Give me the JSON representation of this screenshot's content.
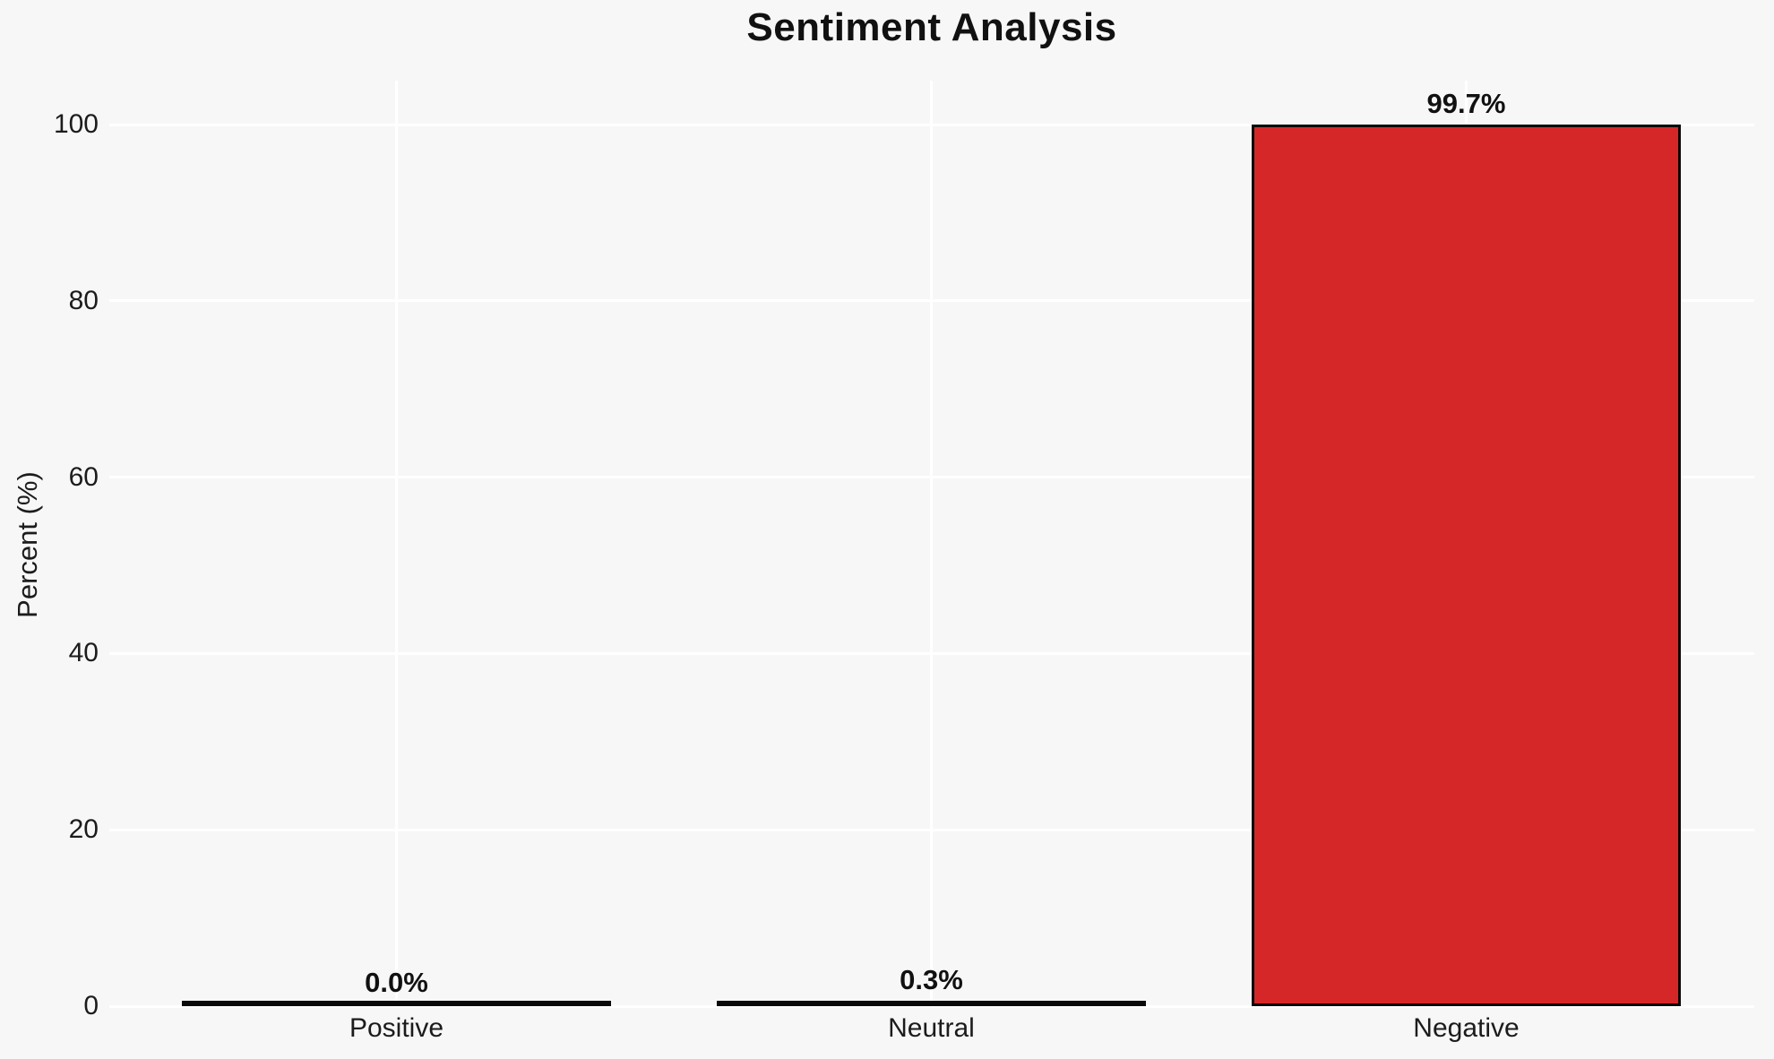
{
  "figure": {
    "background_color": "#f7f7f7",
    "grid_color": "#ffffff",
    "text_color": "#1c1c1c"
  },
  "chart_data": {
    "type": "bar",
    "title": "Sentiment Analysis",
    "xlabel": "",
    "ylabel": "Percent (%)",
    "categories": [
      "Positive",
      "Neutral",
      "Negative"
    ],
    "values": [
      0.0,
      0.3,
      99.7
    ],
    "value_labels": [
      "0.0%",
      "0.3%",
      "99.7%"
    ],
    "yticks": [
      0,
      20,
      40,
      60,
      80,
      100
    ],
    "ylim": [
      0,
      104.7
    ],
    "grid": "on",
    "legend_position": "none",
    "bar_color": "#d62728",
    "bar_edge_color": "#0a0a0a"
  }
}
